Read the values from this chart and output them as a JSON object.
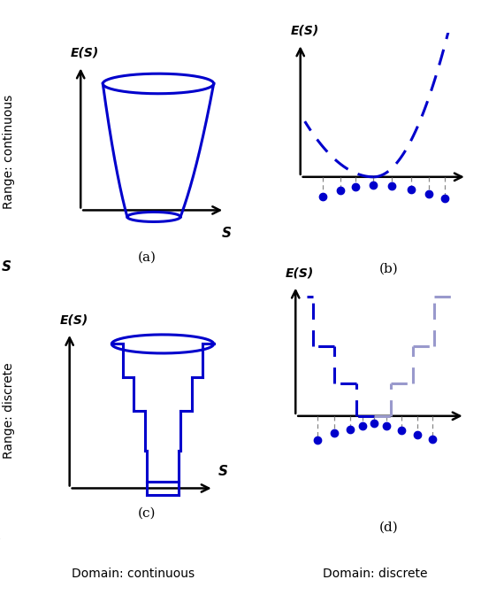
{
  "blue": "#0000CC",
  "blue_light": "#9999CC",
  "gray": "#888888",
  "fig_bg": "#ffffff",
  "subplot_labels": [
    "(a)",
    "(b)",
    "(c)",
    "(d)"
  ],
  "row_label_continuous": "Range: continuous",
  "row_label_discrete": "Range: discrete",
  "bottom_label_continuous": "Domain: continuous",
  "bottom_label_discrete": "Domain: discrete",
  "es_label": "E(S)",
  "s_label": "S"
}
